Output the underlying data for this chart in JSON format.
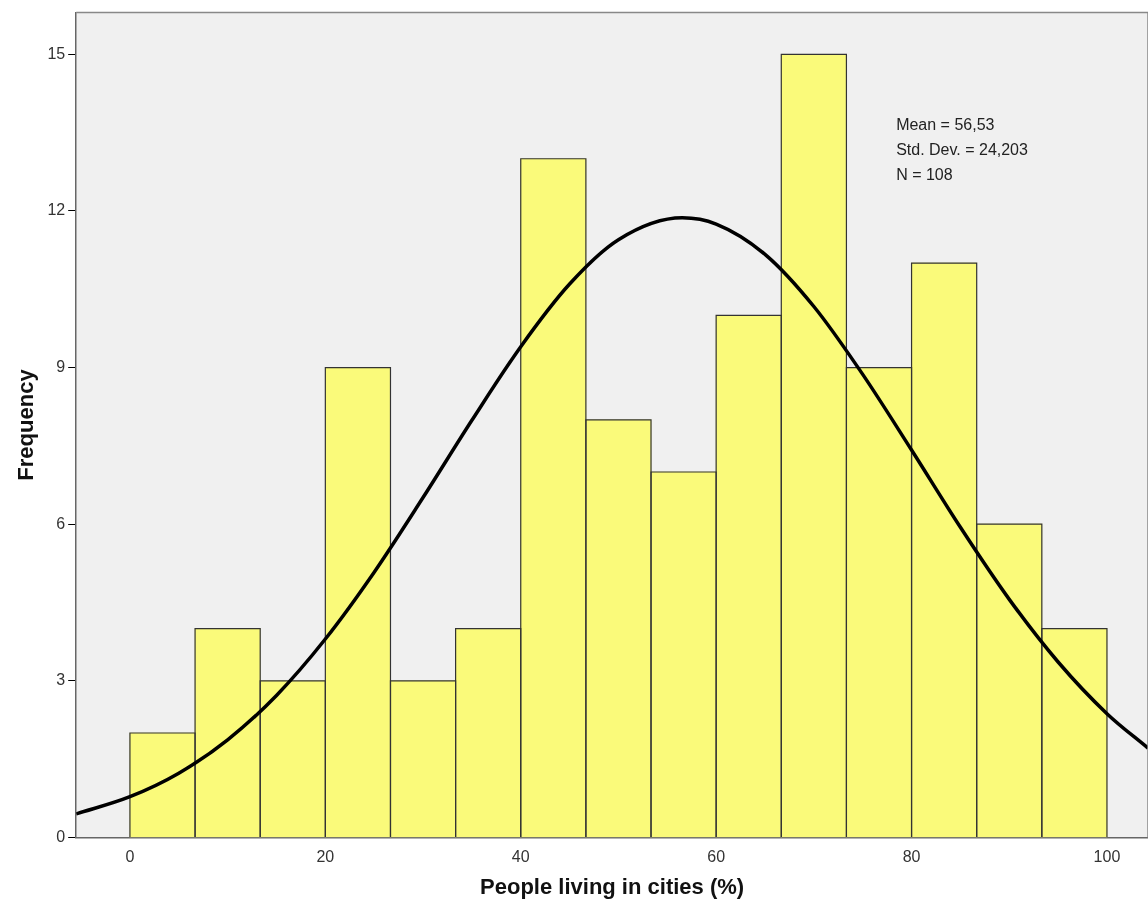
{
  "chart_data": {
    "type": "histogram",
    "xlabel": "People living in cities (%)",
    "ylabel": "Frequency",
    "bins": [
      0,
      6.667,
      13.333,
      20,
      26.667,
      33.333,
      40,
      46.667,
      53.333,
      60,
      66.667,
      73.333,
      80,
      86.667,
      93.333,
      100
    ],
    "values": [
      2,
      4,
      3,
      9,
      3,
      4,
      13,
      8,
      7,
      10,
      15,
      9,
      11,
      6,
      4
    ],
    "color": "#fafa7a",
    "series": [
      {
        "type": "line",
        "color": "#000000",
        "x": [
          -5.5,
          0,
          5,
          10,
          15,
          20,
          25,
          30,
          35,
          40,
          45,
          50,
          56.53,
          60,
          65,
          70,
          75,
          80,
          85,
          90,
          95,
          100,
          104.2
        ],
        "values": [
          0.45,
          0.78,
          1.23,
          1.87,
          2.72,
          3.8,
          5.08,
          6.51,
          7.99,
          9.4,
          10.6,
          11.45,
          11.87,
          11.75,
          11.17,
          10.17,
          8.87,
          7.42,
          5.94,
          4.56,
          3.36,
          2.37,
          1.71
        ]
      }
    ],
    "annotations": [
      "Mean = 56,53",
      "Std. Dev. = 24,203",
      "N = 108"
    ],
    "xlim": [
      -5.5,
      104.2
    ],
    "xticks": [
      0,
      20,
      40,
      60,
      80,
      100
    ],
    "ylim": [
      0,
      15.8
    ],
    "yticks": [
      0,
      3,
      6,
      9,
      12,
      15
    ],
    "grid": false,
    "legend": false
  }
}
